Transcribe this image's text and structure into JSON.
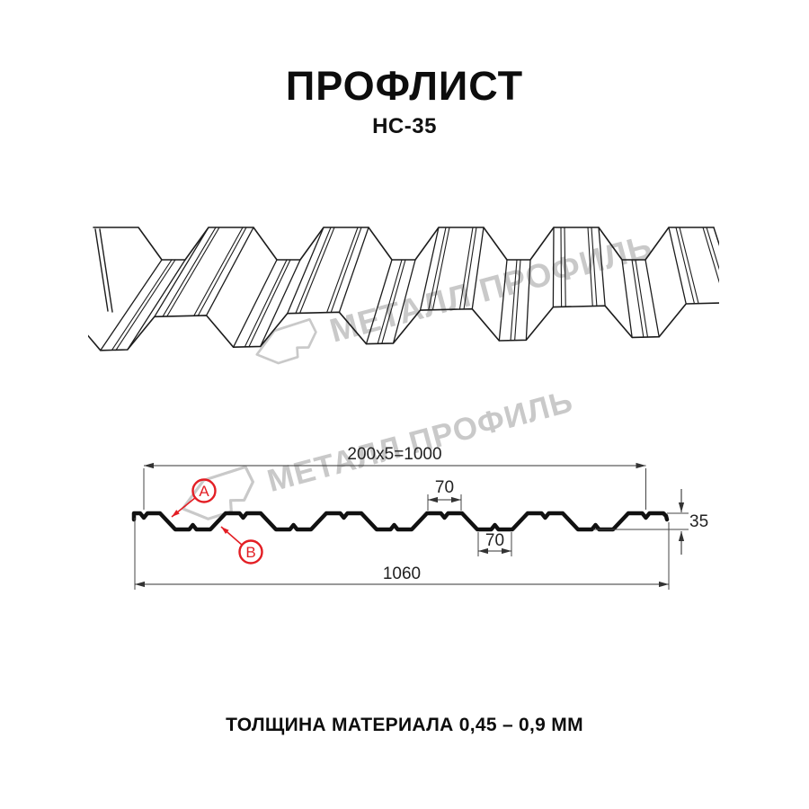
{
  "header": {
    "title": "ПРОФЛИСТ",
    "subtitle": "НС-35"
  },
  "watermark": {
    "text": "МЕТАЛЛ ПРОФИЛЬ",
    "color": "#c9c9c9"
  },
  "drawing": {
    "dimensions": {
      "top_width": "200x5=1000",
      "rib_top_width": "70",
      "rib_bottom_width": "70",
      "profile_height": "35",
      "overall_width": "1060"
    },
    "callouts": {
      "a": "А",
      "b": "В"
    },
    "colors": {
      "accent_red": "#e31e24",
      "line": "#1c1c1c",
      "watermark_gray": "#c9c9c9"
    }
  },
  "footer": {
    "text": "ТОЛЩИНА МАТЕРИАЛА 0,45 – 0,9 ММ"
  }
}
